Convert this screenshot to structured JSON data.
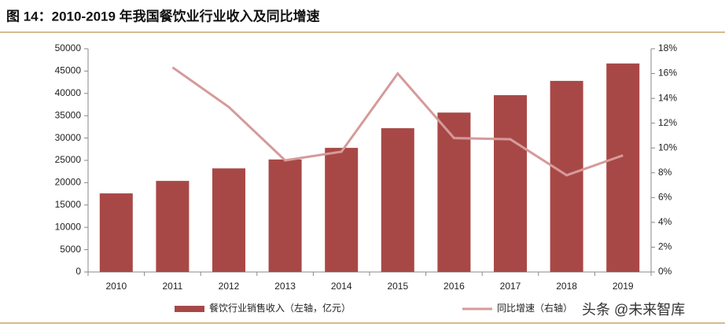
{
  "chart_data": {
    "type": "bar",
    "title": "图 14：2010-2019 年我国餐饮业行业收入及同比增速",
    "categories": [
      "2010",
      "2011",
      "2012",
      "2013",
      "2014",
      "2015",
      "2016",
      "2017",
      "2018",
      "2019"
    ],
    "series": [
      {
        "name": "餐饮行业销售收入（左轴，亿元）",
        "type": "bar",
        "color": "#a84846",
        "values": [
          17600,
          20400,
          23200,
          25200,
          27800,
          32200,
          35700,
          39600,
          42800,
          46700
        ]
      },
      {
        "name": "同比增速（右轴）",
        "type": "line",
        "axis": "y2",
        "color": "#d69a9a",
        "values": [
          null,
          16.5,
          13.3,
          9.0,
          9.7,
          16.0,
          10.8,
          10.7,
          7.8,
          9.4
        ]
      }
    ],
    "ylim": [
      0,
      50000
    ],
    "yticks": [
      0,
      5000,
      10000,
      15000,
      20000,
      25000,
      30000,
      35000,
      40000,
      45000,
      50000
    ],
    "y2lim": [
      0,
      18
    ],
    "y2ticks": [
      {
        "value": 0,
        "label": "0%"
      },
      {
        "value": 2,
        "label": "2%"
      },
      {
        "value": 4,
        "label": "4%"
      },
      {
        "value": 6,
        "label": "6%"
      },
      {
        "value": 8,
        "label": "8%"
      },
      {
        "value": 10,
        "label": "10%"
      },
      {
        "value": 12,
        "label": "12%"
      },
      {
        "value": 14,
        "label": "14%"
      },
      {
        "value": 16,
        "label": "16%"
      },
      {
        "value": 18,
        "label": "18%"
      }
    ],
    "grid": false,
    "legend": "bottom",
    "watermark": "头条 @未来智库"
  }
}
